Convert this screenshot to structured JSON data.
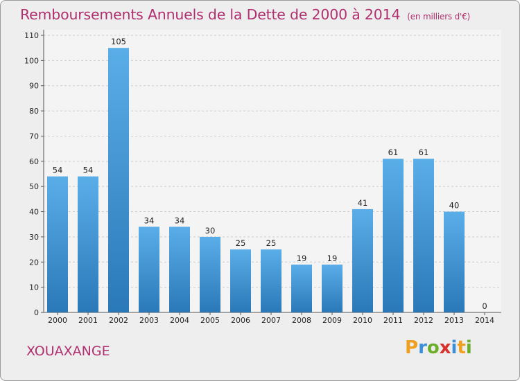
{
  "title": "Remboursements Annuels de la Dette de 2000 à 2014",
  "subtitle": "(en milliers d'€)",
  "commune": "XOUAXANGE",
  "logo": {
    "letters": [
      "P",
      "r",
      "o",
      "x",
      "i",
      "t",
      "i"
    ],
    "colors": [
      "#f0a020",
      "#3a8fd8",
      "#6aae2a",
      "#d8302a",
      "#3a8fd8",
      "#f0a020",
      "#6aae2a"
    ]
  },
  "colors": {
    "bar_light": "#5aaee8",
    "bar_dark": "#2a78b8",
    "title": "#b0306f",
    "background": "#eeeeee",
    "grid": "#cccccc"
  },
  "chart_data": {
    "type": "bar",
    "title": "Remboursements Annuels de la Dette de 2000 à 2014",
    "categories": [
      "2000",
      "2001",
      "2002",
      "2003",
      "2004",
      "2005",
      "2006",
      "2007",
      "2008",
      "2009",
      "2010",
      "2011",
      "2012",
      "2013",
      "2014"
    ],
    "values": [
      54,
      54,
      105,
      34,
      34,
      30,
      25,
      25,
      19,
      19,
      41,
      61,
      61,
      40,
      0
    ],
    "ylim": [
      0,
      110
    ],
    "yticks": [
      0,
      10,
      20,
      30,
      40,
      50,
      60,
      70,
      80,
      90,
      100,
      110
    ],
    "grid": true,
    "xlabel": "",
    "ylabel": ""
  }
}
